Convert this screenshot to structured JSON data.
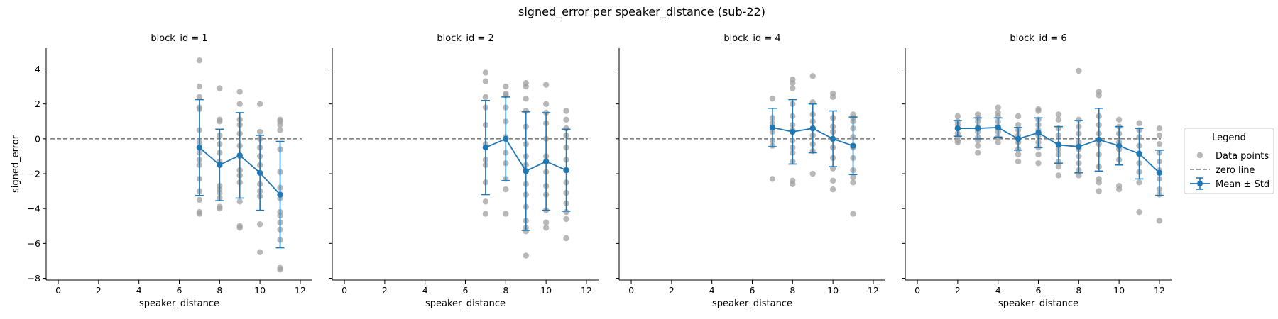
{
  "chart_data": {
    "type": "scatter",
    "title": "signed_error per speaker_distance (sub-22)",
    "xlabel": "speaker_distance",
    "ylabel": "signed_error",
    "xlim": [
      -0.6,
      12.6
    ],
    "ylim": [
      -8.1,
      5.2
    ],
    "xticks": [
      0,
      2,
      4,
      6,
      8,
      10,
      12
    ],
    "yticks": [
      -8,
      -6,
      -4,
      -2,
      0,
      2,
      4
    ],
    "xtick_labels": [
      "0",
      "2",
      "4",
      "6",
      "8",
      "10",
      "12"
    ],
    "ytick_labels": [
      "−8",
      "−6",
      "−4",
      "−2",
      "0",
      "2",
      "4"
    ],
    "sharey": true,
    "grid": false,
    "legend": {
      "title": "Legend",
      "position": "right",
      "entries": [
        "Data points",
        "zero line",
        "Mean ± Std"
      ]
    },
    "colors": {
      "points": "#a0a0a0",
      "mean": "#1f77b4",
      "zero_line": "#808080"
    },
    "zero_line": 0,
    "panels": [
      {
        "label": "block_id = 1",
        "raw": [
          [
            7,
            4.5
          ],
          [
            7,
            3.0
          ],
          [
            7,
            2.4
          ],
          [
            7,
            1.8
          ],
          [
            7,
            1.7
          ],
          [
            7,
            0.5
          ],
          [
            7,
            -0.2
          ],
          [
            7,
            -0.8
          ],
          [
            7,
            -1.2
          ],
          [
            7,
            -1.5
          ],
          [
            7,
            -2.3
          ],
          [
            7,
            -3.0
          ],
          [
            7,
            -3.5
          ],
          [
            7,
            -4.2
          ],
          [
            7,
            -4.3
          ],
          [
            8,
            2.9
          ],
          [
            8,
            1.1
          ],
          [
            8,
            1.0
          ],
          [
            8,
            0.2
          ],
          [
            8,
            -0.3
          ],
          [
            8,
            -0.8
          ],
          [
            8,
            -1.3
          ],
          [
            8,
            -2.7
          ],
          [
            8,
            -2.9
          ],
          [
            8,
            -3.1
          ],
          [
            8,
            -3.4
          ],
          [
            8,
            -3.9
          ],
          [
            8,
            -4.0
          ],
          [
            9,
            2.7
          ],
          [
            9,
            2.0
          ],
          [
            9,
            1.1
          ],
          [
            9,
            0.8
          ],
          [
            9,
            0.3
          ],
          [
            9,
            -0.4
          ],
          [
            9,
            -1.0
          ],
          [
            9,
            -1.8
          ],
          [
            9,
            -2.1
          ],
          [
            9,
            -2.5
          ],
          [
            9,
            -3.6
          ],
          [
            9,
            -5.0
          ],
          [
            9,
            -5.1
          ],
          [
            10,
            2.0
          ],
          [
            10,
            0.4
          ],
          [
            10,
            0.0
          ],
          [
            10,
            -0.5
          ],
          [
            10,
            -1.0
          ],
          [
            10,
            -1.5
          ],
          [
            10,
            -2.6
          ],
          [
            10,
            -3.0
          ],
          [
            10,
            -3.3
          ],
          [
            10,
            -4.9
          ],
          [
            10,
            -6.5
          ],
          [
            11,
            1.1
          ],
          [
            11,
            1.0
          ],
          [
            11,
            0.8
          ],
          [
            11,
            0.5
          ],
          [
            11,
            -0.6
          ],
          [
            11,
            -1.9
          ],
          [
            11,
            -2.8
          ],
          [
            11,
            -3.4
          ],
          [
            11,
            -4.2
          ],
          [
            11,
            -4.4
          ],
          [
            11,
            -4.8
          ],
          [
            11,
            -5.2
          ],
          [
            11,
            -5.8
          ],
          [
            11,
            -7.4
          ],
          [
            11,
            -7.5
          ]
        ],
        "mean": [
          {
            "x": 7,
            "y": -0.5,
            "std": 2.75
          },
          {
            "x": 8,
            "y": -1.5,
            "std": 2.05
          },
          {
            "x": 9,
            "y": -0.95,
            "std": 2.45
          },
          {
            "x": 10,
            "y": -1.95,
            "std": 2.15
          },
          {
            "x": 11,
            "y": -3.2,
            "std": 3.05
          }
        ]
      },
      {
        "label": "block_id = 2",
        "raw": [
          [
            7,
            3.8
          ],
          [
            7,
            3.3
          ],
          [
            7,
            2.4
          ],
          [
            7,
            1.8
          ],
          [
            7,
            0.8
          ],
          [
            7,
            -0.3
          ],
          [
            7,
            -1.2
          ],
          [
            7,
            -1.5
          ],
          [
            7,
            -2.5
          ],
          [
            7,
            -3.6
          ],
          [
            7,
            -4.3
          ],
          [
            8,
            3.0
          ],
          [
            8,
            2.6
          ],
          [
            8,
            2.5
          ],
          [
            8,
            1.8
          ],
          [
            8,
            1.0
          ],
          [
            8,
            0.1
          ],
          [
            8,
            -0.8
          ],
          [
            8,
            -1.4
          ],
          [
            8,
            -2.3
          ],
          [
            8,
            -2.9
          ],
          [
            8,
            -4.3
          ],
          [
            9,
            3.2
          ],
          [
            9,
            3.0
          ],
          [
            9,
            2.3
          ],
          [
            9,
            1.6
          ],
          [
            9,
            0.7
          ],
          [
            9,
            -0.3
          ],
          [
            9,
            -1.0
          ],
          [
            9,
            -1.5
          ],
          [
            9,
            -2.6
          ],
          [
            9,
            -3.2
          ],
          [
            9,
            -3.9
          ],
          [
            9,
            -4.7
          ],
          [
            9,
            -5.1
          ],
          [
            9,
            -5.3
          ],
          [
            9,
            -6.7
          ],
          [
            10,
            3.1
          ],
          [
            10,
            2.0
          ],
          [
            10,
            1.5
          ],
          [
            10,
            0.9
          ],
          [
            10,
            0.0
          ],
          [
            10,
            -1.0
          ],
          [
            10,
            -1.9
          ],
          [
            10,
            -2.7
          ],
          [
            10,
            -3.2
          ],
          [
            10,
            -4.1
          ],
          [
            10,
            -4.8
          ],
          [
            10,
            -5.1
          ],
          [
            11,
            1.6
          ],
          [
            11,
            1.1
          ],
          [
            11,
            0.6
          ],
          [
            11,
            0.2
          ],
          [
            11,
            -0.5
          ],
          [
            11,
            -1.2
          ],
          [
            11,
            -1.8
          ],
          [
            11,
            -2.5
          ],
          [
            11,
            -3.1
          ],
          [
            11,
            -3.7
          ],
          [
            11,
            -4.2
          ],
          [
            11,
            -4.6
          ],
          [
            11,
            -5.7
          ]
        ],
        "mean": [
          {
            "x": 7,
            "y": -0.5,
            "std": 2.7
          },
          {
            "x": 8,
            "y": 0.0,
            "std": 2.4
          },
          {
            "x": 9,
            "y": -1.85,
            "std": 3.4
          },
          {
            "x": 10,
            "y": -1.3,
            "std": 2.8
          },
          {
            "x": 11,
            "y": -1.8,
            "std": 2.35
          }
        ]
      },
      {
        "label": "block_id = 4",
        "raw": [
          [
            7,
            2.3
          ],
          [
            7,
            1.2
          ],
          [
            7,
            0.9
          ],
          [
            7,
            0.4
          ],
          [
            7,
            -0.1
          ],
          [
            7,
            -0.4
          ],
          [
            7,
            -2.3
          ],
          [
            8,
            3.4
          ],
          [
            8,
            3.2
          ],
          [
            8,
            2.9
          ],
          [
            8,
            2.0
          ],
          [
            8,
            1.3
          ],
          [
            8,
            0.8
          ],
          [
            8,
            0.5
          ],
          [
            8,
            -0.1
          ],
          [
            8,
            -0.5
          ],
          [
            8,
            -0.8
          ],
          [
            8,
            -1.3
          ],
          [
            8,
            -2.4
          ],
          [
            8,
            -2.6
          ],
          [
            9,
            3.6
          ],
          [
            9,
            2.1
          ],
          [
            9,
            1.4
          ],
          [
            9,
            1.0
          ],
          [
            9,
            0.6
          ],
          [
            9,
            0.2
          ],
          [
            9,
            -0.3
          ],
          [
            9,
            -0.7
          ],
          [
            9,
            -2.0
          ],
          [
            10,
            2.6
          ],
          [
            10,
            2.4
          ],
          [
            10,
            1.2
          ],
          [
            10,
            0.7
          ],
          [
            10,
            0.4
          ],
          [
            10,
            0.0
          ],
          [
            10,
            -0.5
          ],
          [
            10,
            -1.1
          ],
          [
            10,
            -1.7
          ],
          [
            10,
            -2.4
          ],
          [
            10,
            -2.9
          ],
          [
            11,
            1.4
          ],
          [
            11,
            1.2
          ],
          [
            11,
            1.0
          ],
          [
            11,
            0.6
          ],
          [
            11,
            0.1
          ],
          [
            11,
            -0.5
          ],
          [
            11,
            -1.1
          ],
          [
            11,
            -1.8
          ],
          [
            11,
            -2.2
          ],
          [
            11,
            -2.5
          ],
          [
            11,
            -4.3
          ]
        ],
        "mean": [
          {
            "x": 7,
            "y": 0.65,
            "std": 1.1
          },
          {
            "x": 8,
            "y": 0.4,
            "std": 1.85
          },
          {
            "x": 9,
            "y": 0.6,
            "std": 1.4
          },
          {
            "x": 10,
            "y": 0.0,
            "std": 1.6
          },
          {
            "x": 11,
            "y": -0.4,
            "std": 1.65
          }
        ]
      },
      {
        "label": "block_id = 6",
        "raw": [
          [
            2,
            1.3
          ],
          [
            2,
            1.0
          ],
          [
            2,
            0.8
          ],
          [
            2,
            0.6
          ],
          [
            2,
            0.3
          ],
          [
            2,
            0.1
          ],
          [
            2,
            -0.1
          ],
          [
            2,
            -0.2
          ],
          [
            3,
            1.4
          ],
          [
            3,
            1.2
          ],
          [
            3,
            1.0
          ],
          [
            3,
            0.7
          ],
          [
            3,
            0.4
          ],
          [
            3,
            0.1
          ],
          [
            3,
            -0.1
          ],
          [
            3,
            -0.4
          ],
          [
            3,
            -0.8
          ],
          [
            4,
            1.8
          ],
          [
            4,
            1.5
          ],
          [
            4,
            1.3
          ],
          [
            4,
            1.0
          ],
          [
            4,
            0.7
          ],
          [
            4,
            0.4
          ],
          [
            4,
            0.1
          ],
          [
            4,
            -0.2
          ],
          [
            5,
            1.3
          ],
          [
            5,
            0.8
          ],
          [
            5,
            0.5
          ],
          [
            5,
            0.2
          ],
          [
            5,
            -0.2
          ],
          [
            5,
            -0.6
          ],
          [
            5,
            -0.9
          ],
          [
            5,
            -1.3
          ],
          [
            6,
            1.7
          ],
          [
            6,
            1.6
          ],
          [
            6,
            1.1
          ],
          [
            6,
            0.8
          ],
          [
            6,
            0.5
          ],
          [
            6,
            0.2
          ],
          [
            6,
            -0.2
          ],
          [
            6,
            -0.5
          ],
          [
            6,
            -0.9
          ],
          [
            6,
            -1.4
          ],
          [
            7,
            1.4
          ],
          [
            7,
            1.1
          ],
          [
            7,
            0.6
          ],
          [
            7,
            0.2
          ],
          [
            7,
            -0.3
          ],
          [
            7,
            -0.6
          ],
          [
            7,
            -0.9
          ],
          [
            7,
            -1.3
          ],
          [
            7,
            -1.6
          ],
          [
            7,
            -2.1
          ],
          [
            8,
            3.9
          ],
          [
            8,
            1.1
          ],
          [
            8,
            0.7
          ],
          [
            8,
            0.3
          ],
          [
            8,
            -0.2
          ],
          [
            8,
            -0.6
          ],
          [
            8,
            -1.0
          ],
          [
            8,
            -1.4
          ],
          [
            8,
            -1.8
          ],
          [
            8,
            -2.1
          ],
          [
            9,
            2.7
          ],
          [
            9,
            2.5
          ],
          [
            9,
            1.3
          ],
          [
            9,
            0.8
          ],
          [
            9,
            0.3
          ],
          [
            9,
            -0.3
          ],
          [
            9,
            -0.9
          ],
          [
            9,
            -1.6
          ],
          [
            9,
            -2.3
          ],
          [
            9,
            -2.5
          ],
          [
            9,
            -3.0
          ],
          [
            10,
            1.1
          ],
          [
            10,
            0.7
          ],
          [
            10,
            0.3
          ],
          [
            10,
            -0.2
          ],
          [
            10,
            -0.6
          ],
          [
            10,
            -1.2
          ],
          [
            10,
            -2.7
          ],
          [
            10,
            -2.9
          ],
          [
            11,
            0.9
          ],
          [
            11,
            0.5
          ],
          [
            11,
            0.1
          ],
          [
            11,
            -0.4
          ],
          [
            11,
            -0.9
          ],
          [
            11,
            -1.4
          ],
          [
            11,
            -1.9
          ],
          [
            11,
            -2.5
          ],
          [
            11,
            -4.2
          ],
          [
            12,
            0.6
          ],
          [
            12,
            0.2
          ],
          [
            12,
            -0.3
          ],
          [
            12,
            -0.8
          ],
          [
            12,
            -1.3
          ],
          [
            12,
            -1.8
          ],
          [
            12,
            -2.3
          ],
          [
            12,
            -2.9
          ],
          [
            12,
            -3.2
          ],
          [
            12,
            -4.7
          ]
        ],
        "mean": [
          {
            "x": 2,
            "y": 0.6,
            "std": 0.45
          },
          {
            "x": 3,
            "y": 0.6,
            "std": 0.6
          },
          {
            "x": 4,
            "y": 0.65,
            "std": 0.55
          },
          {
            "x": 5,
            "y": 0.0,
            "std": 0.65
          },
          {
            "x": 6,
            "y": 0.35,
            "std": 0.85
          },
          {
            "x": 7,
            "y": -0.35,
            "std": 1.05
          },
          {
            "x": 8,
            "y": -0.45,
            "std": 1.5
          },
          {
            "x": 9,
            "y": -0.05,
            "std": 1.8
          },
          {
            "x": 10,
            "y": -0.4,
            "std": 1.1
          },
          {
            "x": 11,
            "y": -0.85,
            "std": 1.45
          },
          {
            "x": 12,
            "y": -1.95,
            "std": 1.3
          }
        ]
      }
    ]
  }
}
